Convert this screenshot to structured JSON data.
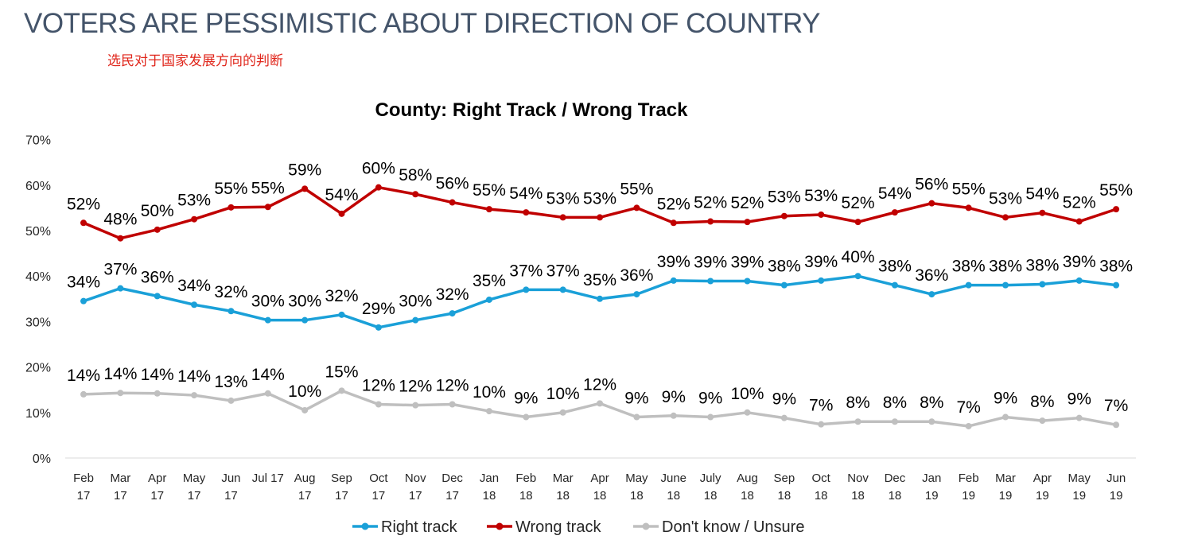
{
  "header": {
    "title": "VOTERS ARE PESSIMISTIC ABOUT DIRECTION OF COUNTRY",
    "subtitle": "选民对于国家发展方向的判断"
  },
  "chart_data": {
    "type": "line",
    "title": "County: Right Track / Wrong Track",
    "xlabel": "",
    "ylabel": "",
    "ylim": [
      0,
      70
    ],
    "y_ticks": [
      "0%",
      "10%",
      "20%",
      "30%",
      "40%",
      "50%",
      "60%",
      "70%"
    ],
    "grid": false,
    "legend_position": "bottom",
    "categories": [
      [
        "Feb",
        "17"
      ],
      [
        "Mar",
        "17"
      ],
      [
        "Apr",
        "17"
      ],
      [
        "May",
        "17"
      ],
      [
        "Jun",
        "17"
      ],
      [
        "Jul 17",
        ""
      ],
      [
        "Aug",
        "17"
      ],
      [
        "Sep",
        "17"
      ],
      [
        "Oct",
        "17"
      ],
      [
        "Nov",
        "17"
      ],
      [
        "Dec",
        "17"
      ],
      [
        "Jan",
        "18"
      ],
      [
        "Feb",
        "18"
      ],
      [
        "Mar",
        "18"
      ],
      [
        "Apr",
        "18"
      ],
      [
        "May",
        "18"
      ],
      [
        "June",
        "18"
      ],
      [
        "July",
        "18"
      ],
      [
        "Aug",
        "18"
      ],
      [
        "Sep",
        "18"
      ],
      [
        "Oct",
        "18"
      ],
      [
        "Nov",
        "18"
      ],
      [
        "Dec",
        "18"
      ],
      [
        "Jan",
        "19"
      ],
      [
        "Feb",
        "19"
      ],
      [
        "Mar",
        "19"
      ],
      [
        "Apr",
        "19"
      ],
      [
        "May",
        "19"
      ],
      [
        "Jun",
        "19"
      ]
    ],
    "series": [
      {
        "name": "Right track",
        "color": "#1aa0d8",
        "values": [
          34.5,
          37.3,
          35.6,
          33.7,
          32.3,
          30.3,
          30.3,
          31.5,
          28.7,
          30.3,
          31.8,
          34.8,
          37,
          37,
          35,
          36,
          39,
          38.9,
          38.9,
          38,
          39,
          40,
          38,
          36,
          38,
          38,
          38.2,
          39,
          38
        ],
        "labels": [
          "34%",
          "37%",
          "36%",
          "34%",
          "32%",
          "30%",
          "30%",
          "32%",
          "29%",
          "30%",
          "32%",
          "35%",
          "37%",
          "37%",
          "35%",
          "36%",
          "39%",
          "39%",
          "39%",
          "38%",
          "39%",
          "40%",
          "38%",
          "36%",
          "38%",
          "38%",
          "38%",
          "39%",
          "38%"
        ]
      },
      {
        "name": "Wrong track",
        "color": "#c00000",
        "values": [
          51.7,
          48.3,
          50.2,
          52.5,
          55.1,
          55.2,
          59.2,
          53.7,
          59.5,
          58,
          56.2,
          54.7,
          54,
          52.9,
          52.9,
          55,
          51.7,
          52,
          51.9,
          53.2,
          53.5,
          51.9,
          54,
          56,
          55,
          52.9,
          53.9,
          52,
          54.7
        ],
        "labels": [
          "52%",
          "48%",
          "50%",
          "53%",
          "55%",
          "55%",
          "59%",
          "54%",
          "60%",
          "58%",
          "56%",
          "55%",
          "54%",
          "53%",
          "53%",
          "55%",
          "52%",
          "52%",
          "52%",
          "53%",
          "53%",
          "52%",
          "54%",
          "56%",
          "55%",
          "53%",
          "54%",
          "52%",
          "55%"
        ]
      },
      {
        "name": "Don't know / Unsure",
        "color": "#bfbfbf",
        "values": [
          14,
          14.3,
          14.2,
          13.8,
          12.6,
          14.2,
          10.5,
          14.8,
          11.8,
          11.6,
          11.8,
          10.3,
          9,
          10,
          12,
          9,
          9.3,
          9,
          10,
          8.8,
          7.4,
          8,
          8,
          8,
          7,
          9,
          8.2,
          8.8,
          7.3
        ],
        "labels": [
          "14%",
          "14%",
          "14%",
          "14%",
          "13%",
          "14%",
          "10%",
          "15%",
          "12%",
          "12%",
          "12%",
          "10%",
          "9%",
          "10%",
          "12%",
          "9%",
          "9%",
          "9%",
          "10%",
          "9%",
          "7%",
          "8%",
          "8%",
          "8%",
          "7%",
          "9%",
          "8%",
          "9%",
          "7%"
        ]
      }
    ]
  }
}
